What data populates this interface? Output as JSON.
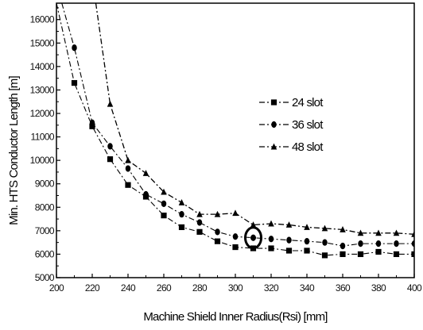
{
  "chart_data": {
    "type": "line",
    "title": "",
    "xlabel": "Machine Shield Inner Radius(Rsi) [mm]",
    "ylabel": "Min. HTS Conductor Length [m]",
    "xlim": [
      200,
      400
    ],
    "ylim": [
      5000,
      16700
    ],
    "x_ticks": [
      200,
      220,
      240,
      260,
      280,
      300,
      320,
      340,
      360,
      380,
      400
    ],
    "y_ticks": [
      5000,
      6000,
      7000,
      8000,
      9000,
      10000,
      11000,
      12000,
      13000,
      14000,
      15000,
      16000
    ],
    "x_tick_labels": [
      "200",
      "220",
      "240",
      "260",
      "280",
      "300",
      "320",
      "340",
      "360",
      "380",
      "400"
    ],
    "y_tick_labels": [
      "5000",
      "6000",
      "7000",
      "8000",
      "9000",
      "10000",
      "11000",
      "12000",
      "13000",
      "14000",
      "15000",
      "16000"
    ],
    "legend_position": "right-center",
    "grid": false,
    "series": [
      {
        "name": "24 slot",
        "marker": "square",
        "dash": "dash-dot",
        "x": [
          200,
          210,
          220,
          230,
          240,
          250,
          260,
          270,
          280,
          290,
          300,
          310,
          320,
          330,
          340,
          350,
          360,
          370,
          380,
          390,
          400
        ],
        "y": [
          16700,
          13300,
          11450,
          10050,
          8950,
          8450,
          7650,
          7150,
          6950,
          6550,
          6300,
          6250,
          6250,
          6150,
          6150,
          5950,
          6000,
          6000,
          6100,
          6000,
          6000
        ]
      },
      {
        "name": "36 slot",
        "marker": "circle",
        "dash": "dash-dot",
        "x": [
          203,
          210,
          220,
          230,
          240,
          250,
          260,
          270,
          280,
          290,
          300,
          310,
          320,
          330,
          340,
          350,
          360,
          370,
          380,
          390,
          400
        ],
        "y": [
          16700,
          14800,
          11600,
          10600,
          9650,
          8550,
          8150,
          7700,
          7350,
          6950,
          6750,
          6700,
          6650,
          6600,
          6550,
          6500,
          6350,
          6450,
          6450,
          6450,
          6450
        ]
      },
      {
        "name": "48 slot",
        "marker": "triangle",
        "dash": "dash-dot",
        "x": [
          222,
          230,
          240,
          250,
          260,
          270,
          280,
          290,
          300,
          310,
          320,
          330,
          340,
          350,
          360,
          370,
          380,
          390,
          400
        ],
        "y": [
          16700,
          12400,
          10000,
          9450,
          8650,
          8200,
          7700,
          7700,
          7750,
          7250,
          7300,
          7250,
          7150,
          7100,
          7050,
          6900,
          6900,
          6900,
          6850
        ]
      }
    ],
    "highlight": {
      "x": 310,
      "y": 6700
    }
  }
}
